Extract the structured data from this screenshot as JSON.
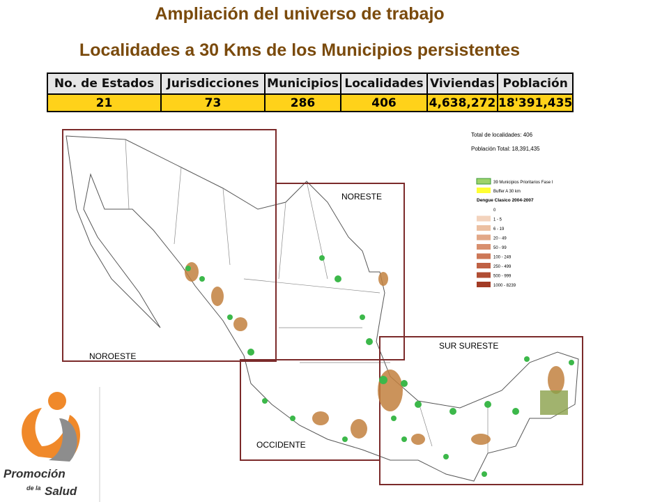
{
  "header": {
    "title": "Ampliación del universo de trabajo",
    "subtitle": "Localidades a 30 Kms de los Municipios persistentes"
  },
  "table": {
    "columns": [
      "No. de Estados",
      "Jurisdicciones",
      "Municipios",
      "Localidades",
      "Viviendas",
      "Población"
    ],
    "rows": [
      [
        "21",
        "73",
        "286",
        "406",
        "4,638,272",
        "18'391,435"
      ]
    ]
  },
  "map": {
    "regions": [
      "NORESTE",
      "NOROESTE",
      "SUR SURESTE",
      "OCCIDENTE"
    ],
    "summary": [
      "Total de localidades: 406",
      "Población Total: 18,391,435"
    ],
    "legend": {
      "items": [
        "39 Municipios Prioritarios Fase I",
        "Buffer A 30 km"
      ],
      "title": "Dengue Clasico 2004-2007",
      "classes": [
        "0",
        "1 - 5",
        "6 - 19",
        "20 - 49",
        "50 - 99",
        "100 - 249",
        "250 - 499",
        "500 - 999",
        "1000 - 8239"
      ]
    }
  },
  "logo": {
    "line1": "Promoción",
    "line2": "de la",
    "line3": "Salud"
  }
}
